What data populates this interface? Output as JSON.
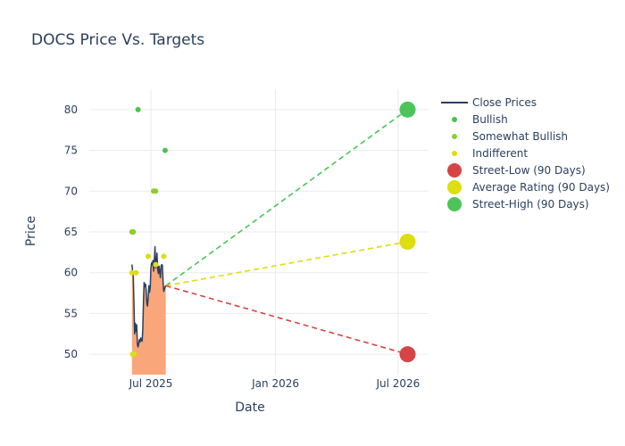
{
  "chart_data": {
    "type": "line",
    "title": "DOCS Price Vs. Targets",
    "xlabel": "Date",
    "ylabel": "Price",
    "x_range": [
      "2025-04-01",
      "2026-08-15"
    ],
    "ylim": [
      47.5,
      82.5
    ],
    "x_ticks": [
      {
        "date": "2025-07-01",
        "label": "Jul 2025"
      },
      {
        "date": "2026-01-01",
        "label": "Jan 2026"
      },
      {
        "date": "2026-07-01",
        "label": "Jul 2026"
      }
    ],
    "y_ticks": [
      50,
      55,
      60,
      65,
      70,
      75,
      80
    ],
    "grid": true,
    "legend_position": "top-right",
    "colors": {
      "close": "#2a3f5f",
      "area_fill": "#f9a77a",
      "bullish": "#4cc24c",
      "somewhat_bullish": "#8ccf2e",
      "indifferent": "#e0dc14",
      "street_low": "#d64545",
      "average": "#dddd10",
      "street_high": "#4cc45a"
    },
    "legend": [
      {
        "key": "close",
        "label": "Close Prices",
        "kind": "line"
      },
      {
        "key": "bullish",
        "label": "Bullish",
        "kind": "dot-small"
      },
      {
        "key": "somewhat_bullish",
        "label": "Somewhat Bullish",
        "kind": "dot-small"
      },
      {
        "key": "indifferent",
        "label": "Indifferent",
        "kind": "dot-small"
      },
      {
        "key": "street_low",
        "label": "Street-Low (90 Days)",
        "kind": "dot-large"
      },
      {
        "key": "average",
        "label": "Average Rating (90 Days)",
        "kind": "dot-large"
      },
      {
        "key": "street_high",
        "label": "Street-High (90 Days)",
        "kind": "dot-large"
      }
    ],
    "close_prices": [
      [
        "2025-06-03",
        61.0
      ],
      [
        "2025-06-04",
        60.2
      ],
      [
        "2025-06-05",
        59.5
      ],
      [
        "2025-06-06",
        56.0
      ],
      [
        "2025-06-07",
        52.5
      ],
      [
        "2025-06-08",
        53.8
      ],
      [
        "2025-06-09",
        52.8
      ],
      [
        "2025-06-10",
        53.6
      ],
      [
        "2025-06-11",
        51.2
      ],
      [
        "2025-06-12",
        50.9
      ],
      [
        "2025-06-13",
        51.3
      ],
      [
        "2025-06-14",
        51.8
      ],
      [
        "2025-06-15",
        51.5
      ],
      [
        "2025-06-16",
        52.0
      ],
      [
        "2025-06-17",
        51.7
      ],
      [
        "2025-06-18",
        51.6
      ],
      [
        "2025-06-19",
        53.0
      ],
      [
        "2025-06-20",
        56.5
      ],
      [
        "2025-06-21",
        58.8
      ],
      [
        "2025-06-22",
        58.3
      ],
      [
        "2025-06-23",
        58.6
      ],
      [
        "2025-06-24",
        57.8
      ],
      [
        "2025-06-25",
        56.2
      ],
      [
        "2025-06-26",
        55.9
      ],
      [
        "2025-06-27",
        57.0
      ],
      [
        "2025-06-28",
        58.4
      ],
      [
        "2025-06-29",
        57.6
      ],
      [
        "2025-06-30",
        58.2
      ],
      [
        "2025-07-01",
        60.6
      ],
      [
        "2025-07-02",
        61.2
      ],
      [
        "2025-07-03",
        60.9
      ],
      [
        "2025-07-04",
        61.5
      ],
      [
        "2025-07-05",
        60.2
      ],
      [
        "2025-07-06",
        61.3
      ],
      [
        "2025-07-07",
        63.2
      ],
      [
        "2025-07-08",
        60.6
      ],
      [
        "2025-07-09",
        61.1
      ],
      [
        "2025-07-10",
        62.4
      ],
      [
        "2025-07-11",
        60.4
      ],
      [
        "2025-07-12",
        59.9
      ],
      [
        "2025-07-13",
        60.8
      ],
      [
        "2025-07-14",
        60.1
      ],
      [
        "2025-07-15",
        59.4
      ],
      [
        "2025-07-16",
        60.8
      ],
      [
        "2025-07-17",
        61.0
      ],
      [
        "2025-07-18",
        60.9
      ],
      [
        "2025-07-19",
        58.8
      ],
      [
        "2025-07-20",
        57.7
      ],
      [
        "2025-07-21",
        58.0
      ],
      [
        "2025-07-22",
        58.3
      ],
      [
        "2025-07-23",
        58.4
      ]
    ],
    "ratings": [
      {
        "date": "2025-06-03",
        "price": 65,
        "category": "somewhat_bullish"
      },
      {
        "date": "2025-06-05",
        "price": 65,
        "category": "somewhat_bullish"
      },
      {
        "date": "2025-06-03",
        "price": 60,
        "category": "indifferent"
      },
      {
        "date": "2025-06-04",
        "price": 50,
        "category": "indifferent"
      },
      {
        "date": "2025-06-06",
        "price": 50,
        "category": "indifferent"
      },
      {
        "date": "2025-06-09",
        "price": 60,
        "category": "indifferent"
      },
      {
        "date": "2025-06-12",
        "price": 80,
        "category": "bullish"
      },
      {
        "date": "2025-06-27",
        "price": 62,
        "category": "indifferent"
      },
      {
        "date": "2025-07-05",
        "price": 70,
        "category": "somewhat_bullish"
      },
      {
        "date": "2025-07-08",
        "price": 70,
        "category": "somewhat_bullish"
      },
      {
        "date": "2025-07-08",
        "price": 61,
        "category": "indifferent"
      },
      {
        "date": "2025-07-20",
        "price": 62,
        "category": "indifferent"
      },
      {
        "date": "2025-07-22",
        "price": 75,
        "category": "bullish"
      }
    ],
    "projections": {
      "start": {
        "date": "2025-07-23",
        "price": 58.4
      },
      "end_date": "2026-07-15",
      "targets": [
        {
          "key": "street_high",
          "price": 80
        },
        {
          "key": "average",
          "price": 63.8
        },
        {
          "key": "street_low",
          "price": 50
        }
      ]
    }
  }
}
